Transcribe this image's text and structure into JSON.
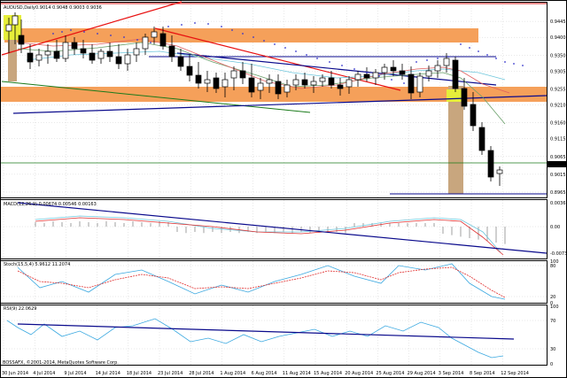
{
  "window": {
    "frame_color": "#000000",
    "background": "#ffffff",
    "grid_color": "#c8c8c8"
  },
  "main_panel": {
    "title": "AUDUSD,Daily",
    "ohlc": "0.9014 0.9048 0.9003 0.9036",
    "current_price": "0.9036",
    "price_labels": [
      "0.9445",
      "0.9400",
      "0.9350",
      "0.9305",
      "0.9255",
      "0.9210",
      "0.9160",
      "0.9115",
      "0.9065",
      "0.9015",
      "0.8965"
    ],
    "price_levels": [
      0.9445,
      0.94,
      0.935,
      0.9305,
      0.9255,
      0.921,
      0.916,
      0.9115,
      0.9065,
      0.9015,
      0.8965
    ]
  },
  "macd_panel": {
    "title": "MACD(12,26,9) 0.00674 0.00546 0.00163",
    "axis_labels": [
      "0.00367",
      "0.00",
      "-0.00733"
    ]
  },
  "stoch_panel": {
    "title": "Stoch(15,5,4) 5.9612 11.2074",
    "axis_labels": [
      "100",
      "80",
      "20",
      "0"
    ]
  },
  "rsi_panel": {
    "title": "RSI(9) 22.0629",
    "axis_labels": [
      "100",
      "70",
      "30",
      "0"
    ]
  },
  "copyright": "BOSSAFX, ©2001-2014, MetaQuotes Software Corp.",
  "time_axis": [
    "30 Jun 2014",
    "4 Jul 2014",
    "9 Jul 2014",
    "14 Jul 2014",
    "18 Jul 2014",
    "23 Jul 2014",
    "28 Jul 2014",
    "1 Aug 2014",
    "6 Aug 2014",
    "11 Aug 2014",
    "15 Aug 2014",
    "20 Aug 2014",
    "25 Aug 2014",
    "29 Aug 2014",
    "3 Sep 2014",
    "8 Sep 2014",
    "12 Sep 2014"
  ],
  "colors": {
    "zone": "#f5a05a",
    "highlight": "#e6ee3a",
    "shade": "#c8a67e",
    "trend_red": "#e81010",
    "trend_blue": "#0a0a8c",
    "trend_green": "#1a7a1a",
    "ma_cyan": "#6ec6dc",
    "ma_red": "#e06060",
    "ma_green": "#6aa06a",
    "psar": "#3333cc",
    "macd_hist": "#888888",
    "signal_red": "#e03030",
    "osc_blue": "#3aa8e0"
  }
}
